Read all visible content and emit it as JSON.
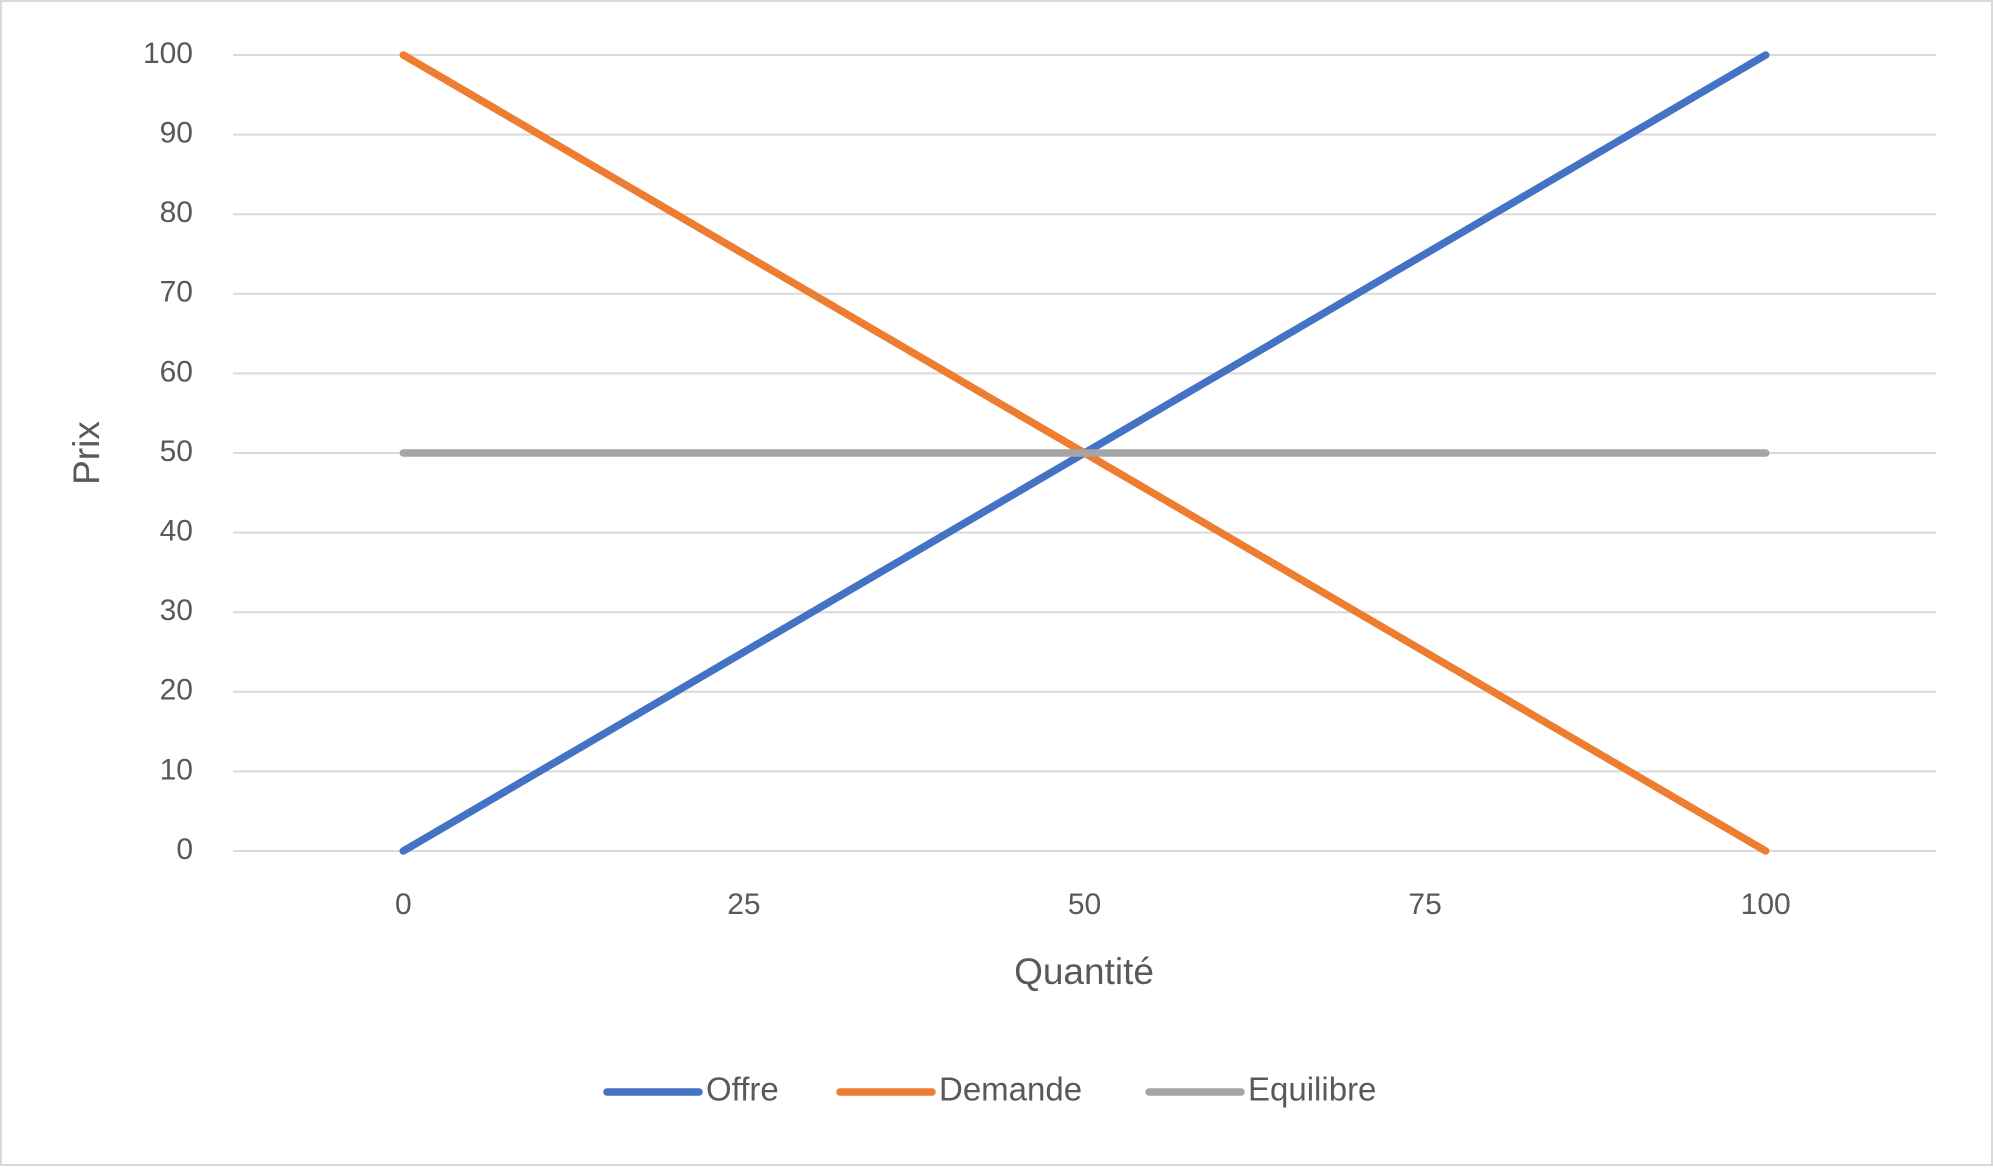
{
  "chart_data": {
    "type": "line",
    "x_label": "Quantité",
    "y_label": "Prix",
    "categories": [
      "0",
      "25",
      "50",
      "75",
      "100"
    ],
    "series": [
      {
        "name": "Offre",
        "color": "#4472c4",
        "values": [
          0,
          25,
          50,
          75,
          100
        ]
      },
      {
        "name": "Demande",
        "color": "#ed7d31",
        "values": [
          100,
          75,
          50,
          25,
          0
        ]
      },
      {
        "name": "Equilibre",
        "color": "#a5a5a5",
        "values": [
          50,
          50,
          50,
          50,
          50
        ]
      }
    ],
    "ylim": [
      0,
      100
    ],
    "yticks": [
      0,
      10,
      20,
      30,
      40,
      50,
      60,
      70,
      80,
      90,
      100
    ],
    "grid": true,
    "legend": "bottom"
  }
}
